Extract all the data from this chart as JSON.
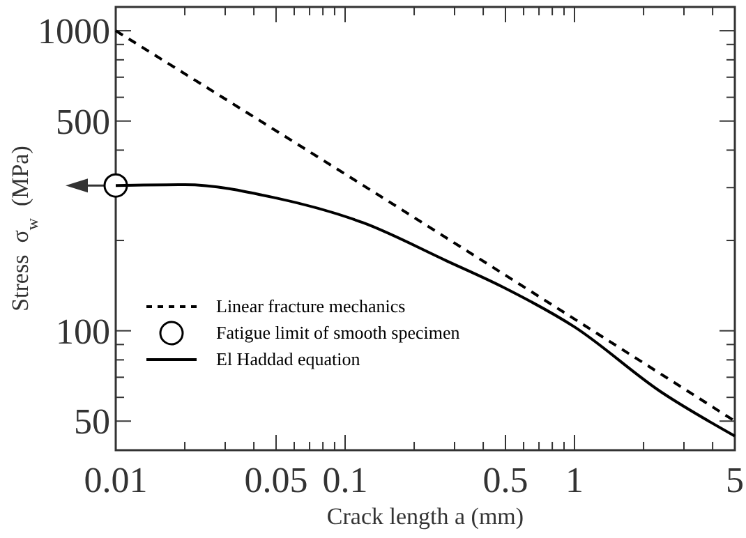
{
  "chart_data": {
    "type": "line",
    "xlabel": "Crack length a (mm)",
    "ylabel": "Stress  σ$_{w}$  (MPa)",
    "log": "xy",
    "grid": false,
    "legend": "bottom left",
    "xlim": [
      0.01,
      5
    ],
    "ylim": [
      40,
      1200
    ],
    "xticks": [
      0.01,
      {
        "value": 0.02,
        "label": null
      },
      {
        "value": 0.03,
        "label": null
      },
      {
        "value": 0.04,
        "label": null
      },
      0.05,
      {
        "value": 0.06,
        "label": null
      },
      {
        "value": 0.07,
        "label": null
      },
      {
        "value": 0.08,
        "label": null
      },
      {
        "value": 0.09,
        "label": null
      },
      0.1,
      {
        "value": 0.2,
        "label": null
      },
      {
        "value": 0.3,
        "label": null
      },
      {
        "value": 0.4,
        "label": null
      },
      0.5,
      {
        "value": 0.6,
        "label": null
      },
      {
        "value": 0.7,
        "label": null
      },
      {
        "value": 0.8,
        "label": null
      },
      {
        "value": 0.9,
        "label": null
      },
      1,
      {
        "value": 2,
        "label": null
      },
      {
        "value": 3,
        "label": null
      },
      {
        "value": 4,
        "label": null
      },
      5
    ],
    "yticks": [
      50,
      {
        "value": 60,
        "label": null
      },
      {
        "value": 70,
        "label": null
      },
      {
        "value": 80,
        "label": null
      },
      {
        "value": 90,
        "label": null
      },
      100,
      {
        "value": 200,
        "label": null
      },
      {
        "value": 300,
        "label": null
      },
      {
        "value": 400,
        "label": null
      },
      500,
      {
        "value": 600,
        "label": null
      },
      {
        "value": 700,
        "label": null
      },
      {
        "value": 800,
        "label": null
      },
      {
        "value": 900,
        "label": null
      },
      1000
    ],
    "series": [
      {
        "name": "Linear fracture mechanics",
        "type": "line",
        "line_style": "dashed",
        "color": "#000000",
        "x": [
          0.01,
          0.12,
          5
        ],
        "values": [
          1000,
          305,
          50
        ]
      },
      {
        "name": "Fatigue limit of smooth specimen",
        "type": "scatter",
        "marker": "circle",
        "color": "#000000",
        "x": [
          0.01
        ],
        "values": [
          305
        ]
      },
      {
        "name": "El Haddad equation",
        "type": "line",
        "line_style": "solid",
        "color": "#000000",
        "x": [
          0.01,
          0.02,
          0.05,
          0.12,
          0.277,
          0.486,
          1,
          2.38,
          5
        ],
        "values": [
          305,
          307,
          277,
          229,
          171,
          140,
          103,
          62.6,
          44.6
        ]
      }
    ]
  }
}
